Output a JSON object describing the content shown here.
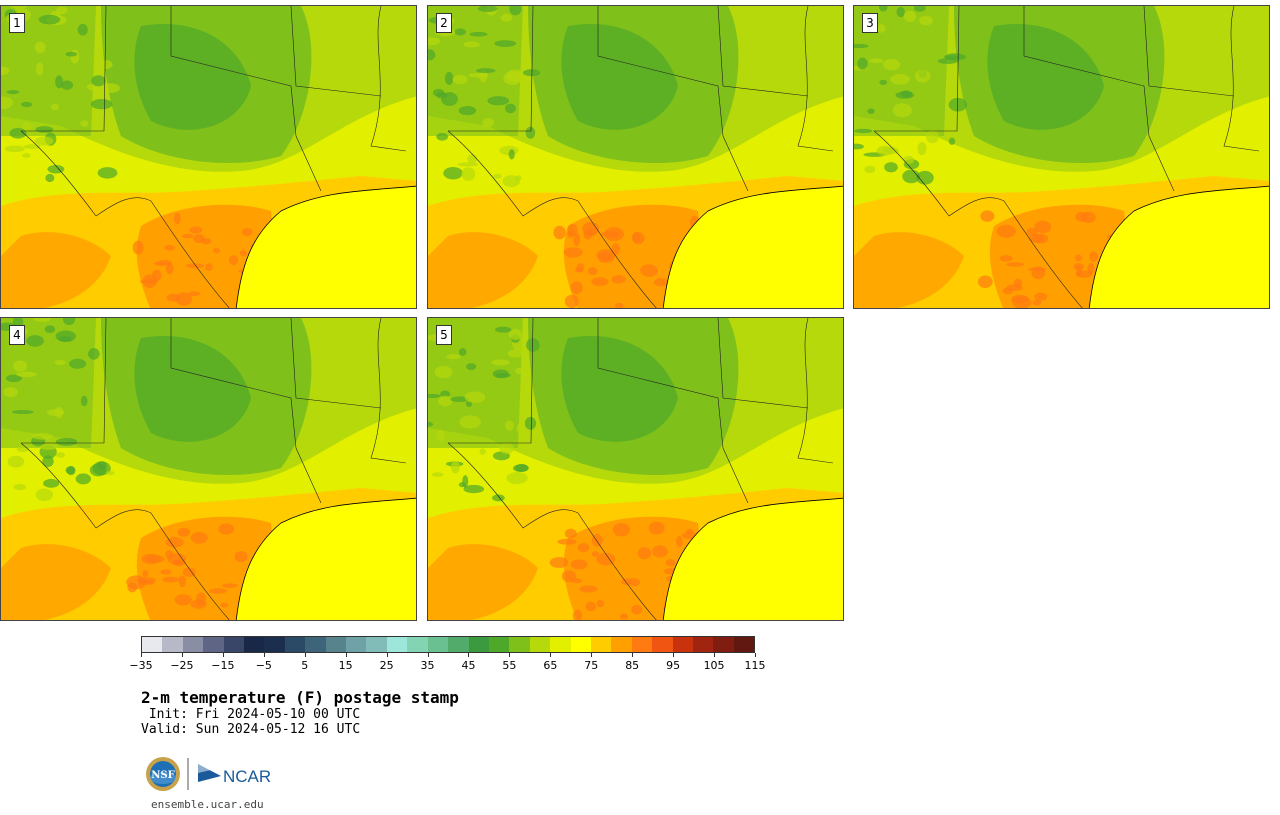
{
  "title": "2-m temperature (F) postage stamp",
  "init_line": " Init: Fri 2024-05-10 00 UTC",
  "valid_line": "Valid: Sun 2024-05-12 16 UTC",
  "footer": "ensemble.ucar.edu",
  "logo_text": "NCAR",
  "nsf_text": "NSF",
  "panels": [
    {
      "label": "1"
    },
    {
      "label": "2"
    },
    {
      "label": "3"
    },
    {
      "label": "4"
    },
    {
      "label": "5"
    }
  ],
  "colorbar": {
    "ticks": [
      "−35",
      "−25",
      "−15",
      "−5",
      "5",
      "15",
      "25",
      "35",
      "45",
      "55",
      "65",
      "75",
      "85",
      "95",
      "105",
      "115"
    ],
    "colors": [
      "#e8e9ee",
      "#b7b9c8",
      "#8a8ea5",
      "#5f6685",
      "#3a4668",
      "#1a2848",
      "#1c2e4e",
      "#2a4a66",
      "#3d6478",
      "#56838c",
      "#6ea2a6",
      "#82bcb8",
      "#9ee6da",
      "#82d4b2",
      "#6ac090",
      "#52ab6a",
      "#3c9a3e",
      "#4ea82a",
      "#7fc01a",
      "#b6d90c",
      "#e2f000",
      "#ffff00",
      "#ffcc00",
      "#ffa000",
      "#ff7a10",
      "#f05512",
      "#c8330e",
      "#a02410",
      "#801c10",
      "#601810"
    ]
  },
  "colors": {
    "dark_green": "#4ea82a",
    "green": "#7fc01a",
    "light_green": "#b6d90c",
    "yellow_green": "#e2f000",
    "yellow": "#ffff00",
    "orange_light": "#ffcc00",
    "orange": "#ffa000",
    "orange_dark": "#ff7a10"
  }
}
